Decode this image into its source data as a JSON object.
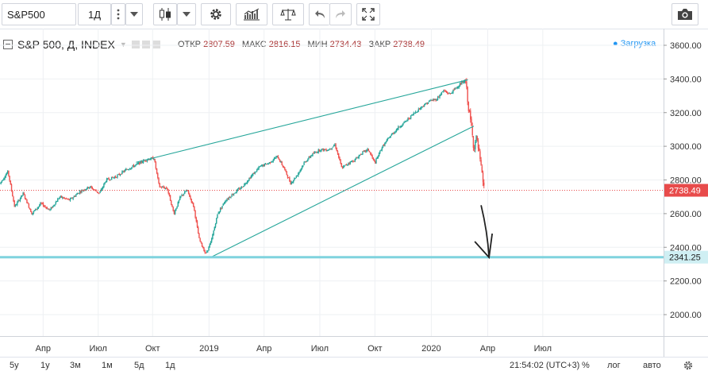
{
  "toolbar": {
    "symbol": "S&P500",
    "interval": "1Д"
  },
  "header": {
    "title": "S&P 500, Д, INDEX",
    "open_label": "ОТКР",
    "open": "2807.59",
    "high_label": "МАКС",
    "high": "2816.15",
    "low_label": "МИН",
    "low": "2734.43",
    "close_label": "ЗАКР",
    "close": "2738.49",
    "status": "Загрузка"
  },
  "bottom": {
    "ranges": [
      "5y",
      "1у",
      "3м",
      "1м",
      "5д",
      "1д"
    ],
    "time": "21:54:02 (UTC+3)",
    "percent": "%",
    "log": "лог",
    "auto": "авто"
  },
  "colors": {
    "up": "#26a69a",
    "down": "#ef5350",
    "trend": "#26a69a",
    "support": "#7fd3de",
    "price_tag": "#e84b4b",
    "support_tag": "#cfeff3"
  },
  "chart_data": {
    "type": "candlestick",
    "title": "S&P 500, Д, INDEX",
    "ylim": [
      1800,
      3700
    ],
    "y_ticks": [
      2000,
      2200,
      2400,
      2600,
      2800,
      3000,
      3200,
      3400,
      3600
    ],
    "y_tick_labels": [
      "2000.00",
      "2200.00",
      "2400.00",
      "2600.00",
      "2800.00",
      "3000.00",
      "3200.00",
      "3400.00",
      "3600.00"
    ],
    "x_tick_labels": [
      {
        "t": 0.065,
        "label": "Апр"
      },
      {
        "t": 0.148,
        "label": "Июл"
      },
      {
        "t": 0.23,
        "label": "Окт"
      },
      {
        "t": 0.315,
        "label": "2019"
      },
      {
        "t": 0.398,
        "label": "Апр"
      },
      {
        "t": 0.482,
        "label": "Июл"
      },
      {
        "t": 0.565,
        "label": "Окт"
      },
      {
        "t": 0.65,
        "label": "2020"
      },
      {
        "t": 0.735,
        "label": "Апр"
      },
      {
        "t": 0.818,
        "label": "Июл"
      }
    ],
    "price_path": [
      [
        0.0,
        2780
      ],
      [
        0.012,
        2850
      ],
      [
        0.022,
        2640
      ],
      [
        0.035,
        2720
      ],
      [
        0.048,
        2600
      ],
      [
        0.062,
        2660
      ],
      [
        0.075,
        2620
      ],
      [
        0.09,
        2700
      ],
      [
        0.105,
        2680
      ],
      [
        0.12,
        2730
      ],
      [
        0.135,
        2760
      ],
      [
        0.15,
        2720
      ],
      [
        0.16,
        2800
      ],
      [
        0.175,
        2820
      ],
      [
        0.19,
        2860
      ],
      [
        0.205,
        2890
      ],
      [
        0.22,
        2920
      ],
      [
        0.232,
        2930
      ],
      [
        0.24,
        2760
      ],
      [
        0.252,
        2750
      ],
      [
        0.262,
        2600
      ],
      [
        0.272,
        2700
      ],
      [
        0.282,
        2740
      ],
      [
        0.292,
        2640
      ],
      [
        0.3,
        2450
      ],
      [
        0.31,
        2360
      ],
      [
        0.318,
        2430
      ],
      [
        0.328,
        2600
      ],
      [
        0.34,
        2680
      ],
      [
        0.352,
        2720
      ],
      [
        0.365,
        2760
      ],
      [
        0.378,
        2820
      ],
      [
        0.392,
        2880
      ],
      [
        0.405,
        2900
      ],
      [
        0.418,
        2940
      ],
      [
        0.428,
        2870
      ],
      [
        0.438,
        2780
      ],
      [
        0.448,
        2830
      ],
      [
        0.458,
        2900
      ],
      [
        0.47,
        2950
      ],
      [
        0.482,
        2980
      ],
      [
        0.495,
        2980
      ],
      [
        0.505,
        3010
      ],
      [
        0.515,
        2870
      ],
      [
        0.525,
        2900
      ],
      [
        0.535,
        2920
      ],
      [
        0.545,
        2960
      ],
      [
        0.555,
        2980
      ],
      [
        0.565,
        2900
      ],
      [
        0.575,
        2990
      ],
      [
        0.588,
        3060
      ],
      [
        0.6,
        3110
      ],
      [
        0.612,
        3150
      ],
      [
        0.625,
        3200
      ],
      [
        0.637,
        3240
      ],
      [
        0.648,
        3270
      ],
      [
        0.658,
        3280
      ],
      [
        0.668,
        3330
      ],
      [
        0.678,
        3310
      ],
      [
        0.688,
        3350
      ],
      [
        0.697,
        3380
      ],
      [
        0.702,
        3380
      ],
      [
        0.706,
        3230
      ],
      [
        0.71,
        3130
      ],
      [
        0.714,
        2990
      ],
      [
        0.718,
        3050
      ],
      [
        0.722,
        2960
      ],
      [
        0.726,
        2840
      ],
      [
        0.73,
        2738
      ]
    ],
    "trend_lines": [
      {
        "name": "upper-resistance",
        "from": [
          0.205,
          2905
        ],
        "to": [
          0.705,
          3395
        ]
      },
      {
        "name": "lower-support",
        "from": [
          0.32,
          2345
        ],
        "to": [
          0.714,
          3120
        ]
      }
    ],
    "horizontal_levels": [
      {
        "name": "current-close",
        "value": 2738.49,
        "label": "2738.49",
        "style": "dotted"
      },
      {
        "name": "support",
        "value": 2341.25,
        "label": "2341.25",
        "style": "thick"
      }
    ],
    "annotation": {
      "type": "hand-drawn-arrow",
      "from": [
        0.725,
        2650
      ],
      "to": [
        0.737,
        2340
      ]
    }
  }
}
